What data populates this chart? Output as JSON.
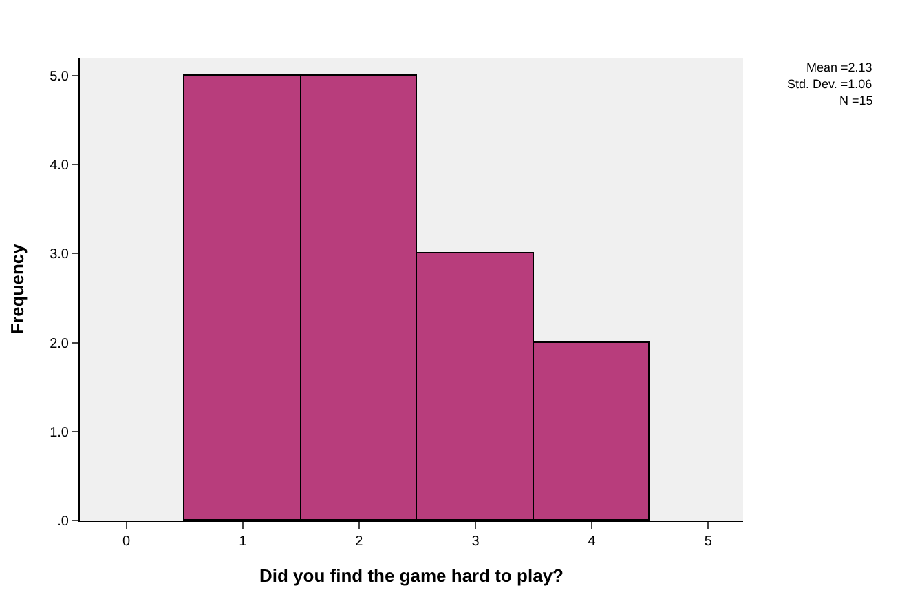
{
  "chart_data": {
    "type": "histogram",
    "xlabel": "Did you find the game hard to play?",
    "ylabel": "Frequency",
    "bins": [
      0.5,
      1.5,
      2.5,
      3.5,
      4.5
    ],
    "values": [
      5,
      5,
      3,
      2
    ],
    "color": "#b83d7c",
    "xlim": [
      -0.4,
      5.3
    ],
    "xticks": [
      0,
      1,
      2,
      3,
      4,
      5
    ],
    "ylim": [
      0,
      5.2
    ],
    "yticks": [
      {
        "value": 0,
        "label": ".0"
      },
      {
        "value": 1,
        "label": "1.0"
      },
      {
        "value": 2,
        "label": "2.0"
      },
      {
        "value": 3,
        "label": "3.0"
      },
      {
        "value": 4,
        "label": "4.0"
      },
      {
        "value": 5,
        "label": "5.0"
      }
    ],
    "grid": false,
    "annotations": [
      "Mean =2.13",
      "Std. Dev. =1.06",
      "N =15"
    ]
  }
}
